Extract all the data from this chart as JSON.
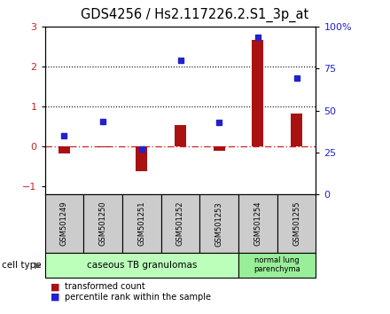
{
  "title": "GDS4256 / Hs2.117226.2.S1_3p_at",
  "samples": [
    "GSM501249",
    "GSM501250",
    "GSM501251",
    "GSM501252",
    "GSM501253",
    "GSM501254",
    "GSM501255"
  ],
  "transformed_count": [
    -0.18,
    -0.02,
    -0.62,
    0.55,
    -0.1,
    2.68,
    0.82
  ],
  "percentile_rank_left": [
    0.27,
    0.62,
    -0.05,
    2.15,
    0.6,
    2.73,
    1.72
  ],
  "ylim_left": [
    -1.2,
    3.0
  ],
  "ylim_right": [
    0,
    100
  ],
  "yticks_left": [
    -1,
    0,
    1,
    2,
    3
  ],
  "yticks_right": [
    0,
    25,
    50,
    75,
    100
  ],
  "hlines": [
    1,
    2
  ],
  "bar_color": "#aa1111",
  "dot_color": "#2222cc",
  "group1_label": "caseous TB granulomas",
  "group2_label": "normal lung\nparenchyma",
  "group1_color": "#bbffbb",
  "group2_color": "#99ee99",
  "cell_type_label": "cell type",
  "legend_bar_label": "transformed count",
  "legend_dot_label": "percentile rank within the sample",
  "tick_fontsize": 8,
  "title_fontsize": 10.5
}
